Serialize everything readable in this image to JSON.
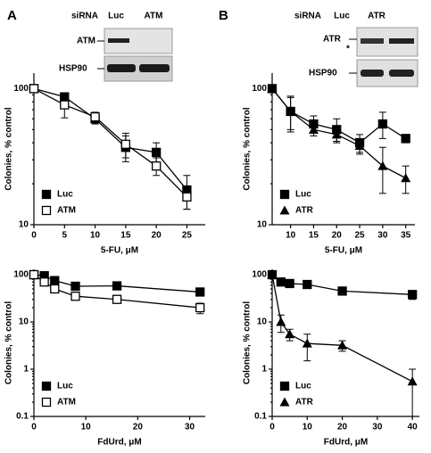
{
  "panel_labels": [
    "A",
    "B"
  ],
  "blots": [
    {
      "header": "siRNA",
      "lanes": [
        "Luc",
        "ATM"
      ],
      "rows": [
        "ATM",
        "HSP90"
      ]
    },
    {
      "header": "siRNA",
      "lanes": [
        "Luc",
        "ATR"
      ],
      "rows": [
        "ATR",
        "HSP90"
      ],
      "note": "*"
    }
  ],
  "chart_data": [
    {
      "type": "line",
      "ylabel": "Colonies, % control",
      "xlabel": "5-FU, μM",
      "log_y": true,
      "legend": "lower left",
      "x": [
        0,
        5,
        10,
        15,
        20,
        25
      ],
      "xlim": [
        0,
        28
      ],
      "xticks": [
        0,
        5,
        10,
        15,
        20,
        25
      ],
      "ylim": [
        10,
        130
      ],
      "yticks": [
        10,
        100
      ],
      "series": [
        {
          "name": "Luc",
          "color": "#000000",
          "marker": "square",
          "values": [
            100,
            87,
            60,
            37,
            34,
            18
          ],
          "errors": [
            0,
            5,
            5,
            8,
            6,
            5
          ]
        },
        {
          "name": "ATM",
          "color": "#000000",
          "marker": "square-open",
          "values": [
            100,
            76,
            62,
            39,
            27,
            16
          ],
          "errors": [
            0,
            15,
            5,
            8,
            4,
            3
          ]
        }
      ]
    },
    {
      "type": "line",
      "ylabel": "Colonies, % control",
      "xlabel": "5-FU, μM",
      "log_y": true,
      "legend": "lower left",
      "x": [
        6,
        10,
        15,
        20,
        25,
        30,
        35
      ],
      "xlim": [
        6,
        37
      ],
      "xticks": [
        10,
        15,
        20,
        25,
        30,
        35
      ],
      "ylim": [
        10,
        130
      ],
      "yticks": [
        10,
        100
      ],
      "series": [
        {
          "name": "Luc",
          "color": "#000000",
          "marker": "square",
          "values": [
            100,
            68,
            55,
            50,
            40,
            55,
            43
          ],
          "errors": [
            0,
            20,
            8,
            10,
            6,
            12,
            3
          ]
        },
        {
          "name": "ATR",
          "color": "#000000",
          "marker": "triangle",
          "values": [
            100,
            68,
            50,
            46,
            38,
            27,
            22
          ],
          "errors": [
            0,
            18,
            5,
            5,
            5,
            10,
            5
          ]
        }
      ]
    },
    {
      "type": "line",
      "ylabel": "Colonies, % control",
      "xlabel": "FdUrd, μM",
      "log_y": true,
      "legend": "lower left",
      "x": [
        0,
        2,
        4,
        8,
        16,
        32
      ],
      "xlim": [
        0,
        33
      ],
      "xticks": [
        0,
        10,
        20,
        30
      ],
      "ylim": [
        0.1,
        130
      ],
      "yticks": [
        0.1,
        1,
        10,
        100
      ],
      "series": [
        {
          "name": "Luc",
          "color": "#000000",
          "marker": "square",
          "values": [
            100,
            95,
            75,
            57,
            58,
            43
          ],
          "errors": [
            0,
            10,
            8,
            6,
            8,
            5
          ]
        },
        {
          "name": "ATM",
          "color": "#000000",
          "marker": "square-open",
          "values": [
            100,
            70,
            50,
            35,
            30,
            20
          ],
          "errors": [
            0,
            10,
            8,
            5,
            4,
            5
          ]
        }
      ]
    },
    {
      "type": "line",
      "ylabel": "Colonies, % control",
      "xlabel": "FdUrd, μM",
      "log_y": true,
      "legend": "lower left",
      "x": [
        0,
        2.5,
        5,
        10,
        20,
        40
      ],
      "xlim": [
        0,
        42
      ],
      "xticks": [
        0,
        10,
        20,
        30,
        40
      ],
      "ylim": [
        0.1,
        130
      ],
      "yticks": [
        0.1,
        1,
        10,
        100
      ],
      "series": [
        {
          "name": "Luc",
          "color": "#000000",
          "marker": "square",
          "values": [
            100,
            70,
            65,
            62,
            45,
            38
          ],
          "errors": [
            0,
            8,
            10,
            6,
            6,
            8
          ]
        },
        {
          "name": "ATR",
          "color": "#000000",
          "marker": "triangle",
          "values": [
            100,
            10,
            5.5,
            3.5,
            3.2,
            0.55
          ],
          "errors": [
            0,
            4,
            1.5,
            2,
            0.8,
            0.45
          ]
        }
      ]
    }
  ]
}
